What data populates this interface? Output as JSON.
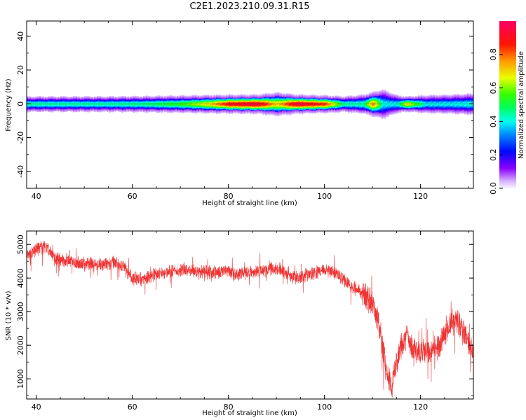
{
  "title": "C2E1.2023.210.09.31.R15",
  "chart_data": [
    {
      "type": "heatmap",
      "xlabel": "Height of straight line (km)",
      "ylabel": "Frequency (Hz)",
      "xlim": [
        38,
        131
      ],
      "ylim": [
        -50,
        49
      ],
      "xticks": [
        40,
        60,
        80,
        100,
        120
      ],
      "yticks": [
        -40,
        -20,
        0,
        20,
        40
      ],
      "ridge": [
        {
          "x": 39,
          "amp": 0.45,
          "width": 2.6
        },
        {
          "x": 45,
          "amp": 0.45,
          "width": 2.6
        },
        {
          "x": 55,
          "amp": 0.45,
          "width": 2.6
        },
        {
          "x": 62,
          "amp": 0.47,
          "width": 2.7
        },
        {
          "x": 70,
          "amp": 0.55,
          "width": 2.9
        },
        {
          "x": 76,
          "amp": 0.7,
          "width": 3.1
        },
        {
          "x": 80,
          "amp": 0.9,
          "width": 3.2
        },
        {
          "x": 86,
          "amp": 0.95,
          "width": 3.3
        },
        {
          "x": 90,
          "amp": 0.7,
          "width": 4.0
        },
        {
          "x": 94,
          "amp": 0.95,
          "width": 3.3
        },
        {
          "x": 100,
          "amp": 0.85,
          "width": 3.0
        },
        {
          "x": 104,
          "amp": 0.45,
          "width": 2.6
        },
        {
          "x": 108,
          "amp": 0.45,
          "width": 3.2
        },
        {
          "x": 110,
          "amp": 0.8,
          "width": 4.2
        },
        {
          "x": 112,
          "amp": 0.4,
          "width": 5.0
        },
        {
          "x": 115,
          "amp": 0.4,
          "width": 3.0
        },
        {
          "x": 117,
          "amp": 0.7,
          "width": 2.6
        },
        {
          "x": 121,
          "amp": 0.4,
          "width": 3.0
        },
        {
          "x": 126,
          "amp": 0.4,
          "width": 3.2
        },
        {
          "x": 131,
          "amp": 0.42,
          "width": 3.6
        }
      ],
      "colorbar": {
        "label": "Normalized spectral amplitude",
        "ticks": [
          0.0,
          0.2,
          0.4,
          0.6,
          0.8
        ],
        "range": [
          0,
          1
        ],
        "colormap": "gist_rainbow_r"
      }
    },
    {
      "type": "line",
      "xlabel": "Height of straight line (km)",
      "ylabel": "SNR (10 * v/v)",
      "xlim": [
        38,
        131
      ],
      "ylim": [
        400,
        5400
      ],
      "xticks": [
        40,
        60,
        80,
        100,
        120
      ],
      "yticks": [
        1000,
        2000,
        3000,
        4000,
        5000
      ],
      "color": "#ee3333",
      "x": [
        38,
        40,
        42,
        44,
        48,
        52,
        56,
        58,
        60,
        62,
        66,
        70,
        74,
        78,
        80,
        82,
        86,
        90,
        94,
        98,
        100,
        102,
        104,
        106,
        108,
        110,
        111,
        112,
        113,
        114,
        115,
        116,
        117,
        118,
        120,
        122,
        124,
        126,
        128,
        130,
        131
      ],
      "y": [
        4600,
        4850,
        4950,
        4600,
        4450,
        4400,
        4450,
        4350,
        4000,
        3950,
        4150,
        4250,
        4200,
        4150,
        4200,
        4100,
        4200,
        4300,
        4000,
        4150,
        4250,
        4200,
        3950,
        3700,
        3550,
        3250,
        2800,
        2100,
        1100,
        700,
        1500,
        2000,
        2300,
        2000,
        1800,
        1850,
        2000,
        2700,
        2700,
        2100,
        1700
      ]
    }
  ]
}
